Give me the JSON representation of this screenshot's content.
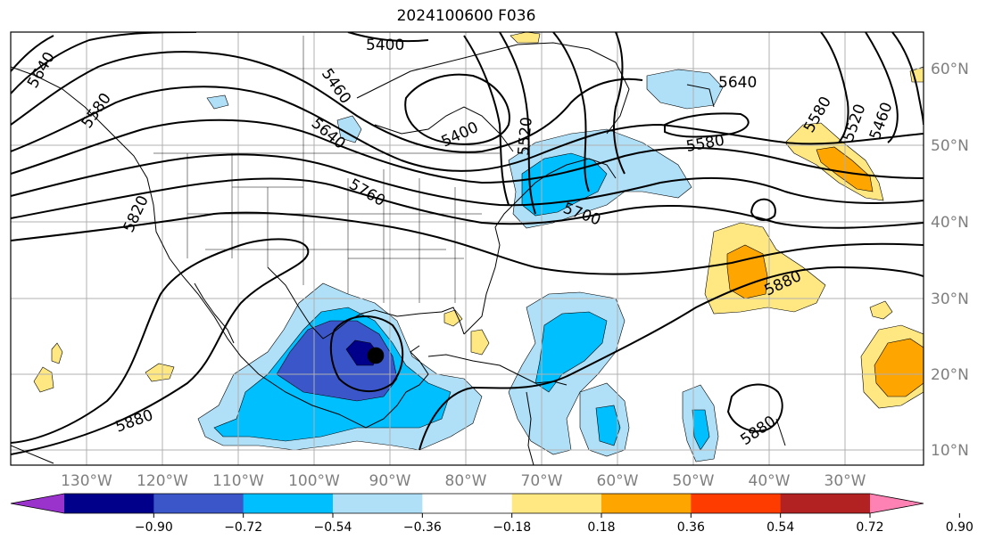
{
  "title": "2024100600 F036",
  "lon_labels": [
    "130°W",
    "120°W",
    "110°W",
    "100°W",
    "90°W",
    "80°W",
    "70°W",
    "60°W",
    "50°W",
    "40°W",
    "30°W"
  ],
  "lat_labels": [
    "60°N",
    "50°N",
    "40°N",
    "30°N",
    "20°N",
    "10°N"
  ],
  "contour_labels": [
    "5400",
    "5460",
    "5520",
    "5580",
    "5640",
    "5700",
    "5760",
    "5820",
    "5880"
  ],
  "colorbar": {
    "ticks": [
      "−0.90",
      "−0.72",
      "−0.54",
      "−0.36",
      "−0.18",
      "0.18",
      "0.36",
      "0.54",
      "0.72",
      "0.90"
    ],
    "colors": [
      "#9933cc",
      "#00008b",
      "#3a56c8",
      "#00bfff",
      "#afe0f8",
      "#ffffff",
      "#ffe882",
      "#ffa500",
      "#ff3c00",
      "#b22222",
      "#ff82b4"
    ]
  }
}
